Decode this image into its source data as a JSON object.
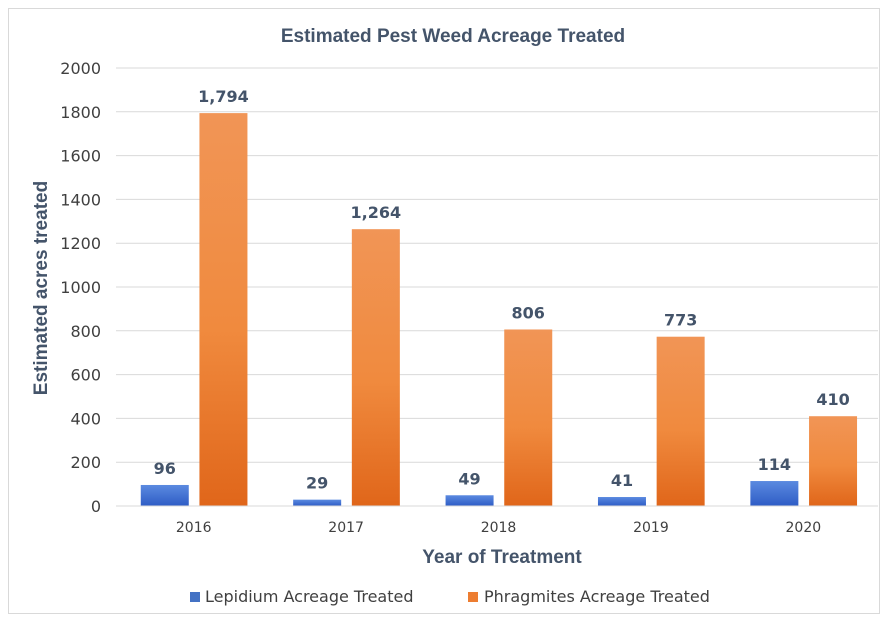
{
  "chart_data": {
    "type": "bar",
    "title": "Estimated Pest Weed Acreage Treated",
    "xlabel": "Year of Treatment",
    "ylabel": "Estimated acres treated",
    "categories": [
      "2016",
      "2017",
      "2018",
      "2019",
      "2020"
    ],
    "series": [
      {
        "name": "Lepidium Acreage Treated",
        "values": [
          96,
          29,
          49,
          41,
          114
        ],
        "labels": [
          "96",
          "29",
          "49",
          "41",
          "114"
        ],
        "color": "#4472c4"
      },
      {
        "name": "Phragmites Acreage Treated",
        "values": [
          1794,
          1264,
          806,
          773,
          410
        ],
        "labels": [
          "1,794",
          "1,264",
          "806",
          "773",
          "410"
        ],
        "color": "#ed7d31"
      }
    ],
    "ylim": [
      0,
      2000
    ],
    "yticks": [
      "0",
      "200",
      "400",
      "600",
      "800",
      "1000",
      "1200",
      "1400",
      "1600",
      "1800",
      "2000"
    ],
    "grid": true,
    "legend_position": "bottom"
  }
}
